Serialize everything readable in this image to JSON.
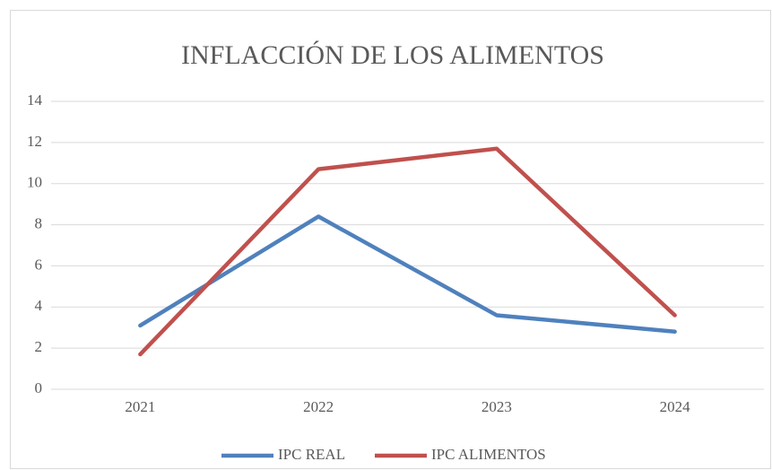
{
  "chart_data": {
    "type": "line",
    "title": "INFLACCIÓN DE LOS ALIMENTOS",
    "categories": [
      "2021",
      "2022",
      "2023",
      "2024"
    ],
    "series": [
      {
        "name": "IPC REAL",
        "color": "#4f81bd",
        "values": [
          3.1,
          8.4,
          3.6,
          2.8
        ]
      },
      {
        "name": "IPC ALIMENTOS",
        "color": "#c0504d",
        "values": [
          1.7,
          10.7,
          11.7,
          3.6
        ]
      }
    ],
    "ylim": [
      0,
      14
    ],
    "yticks": [
      0,
      2,
      4,
      6,
      8,
      10,
      12,
      14
    ],
    "grid": true,
    "legend": "bottom"
  }
}
